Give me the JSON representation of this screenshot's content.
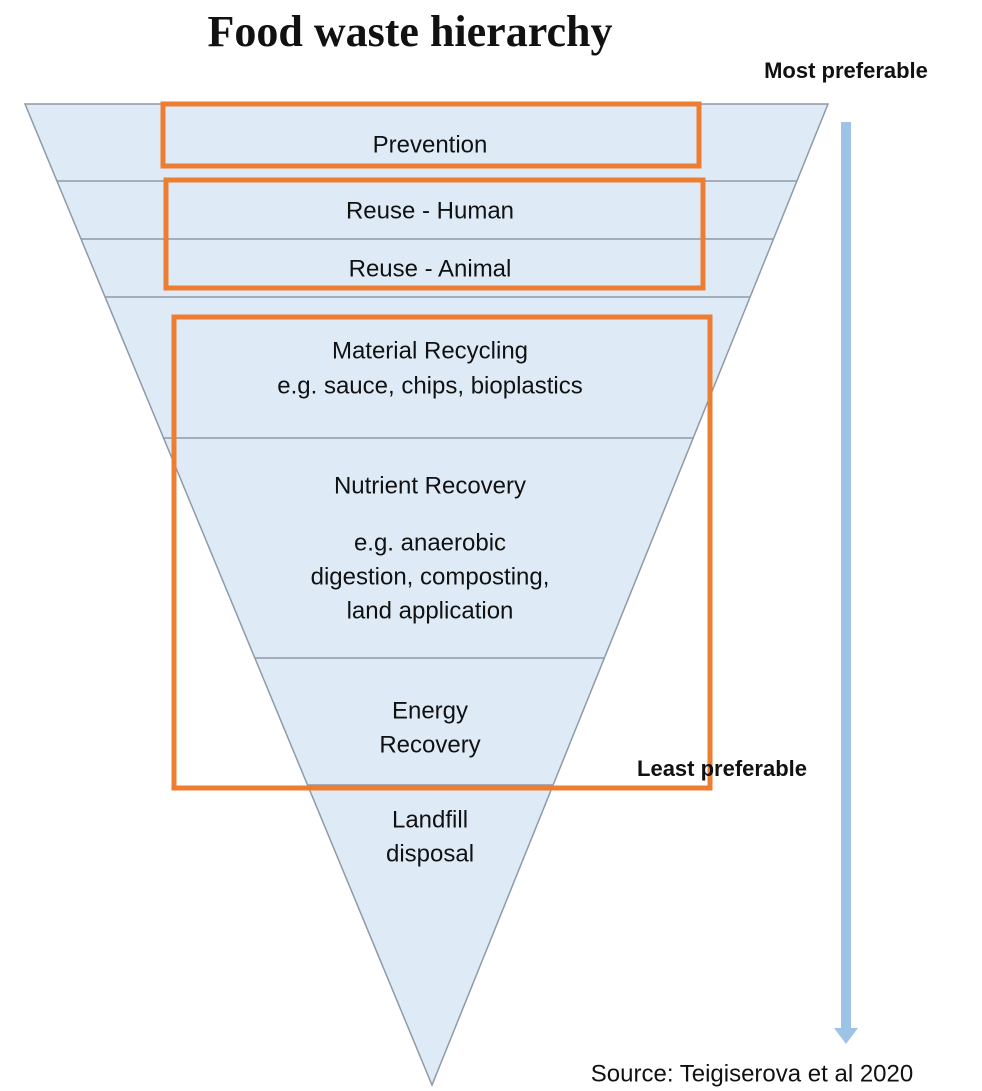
{
  "title": "Food waste hierarchy",
  "top_label": "Most preferable",
  "bottom_label": "Least preferable",
  "levels": [
    {
      "lines": [
        "Prevention"
      ]
    },
    {
      "lines": [
        "Reuse - Human"
      ]
    },
    {
      "lines": [
        "Reuse - Animal"
      ]
    },
    {
      "lines": [
        "Material Recycling",
        "e.g. sauce, chips, bioplastics"
      ]
    },
    {
      "lines": [
        "Nutrient Recovery",
        "e.g. anaerobic",
        "digestion, composting,",
        "land application"
      ]
    },
    {
      "lines": [
        "Energy",
        "Recovery"
      ]
    },
    {
      "lines": [
        "Landfill",
        "disposal"
      ]
    }
  ],
  "source": "Source: Teigiserova et al 2020"
}
